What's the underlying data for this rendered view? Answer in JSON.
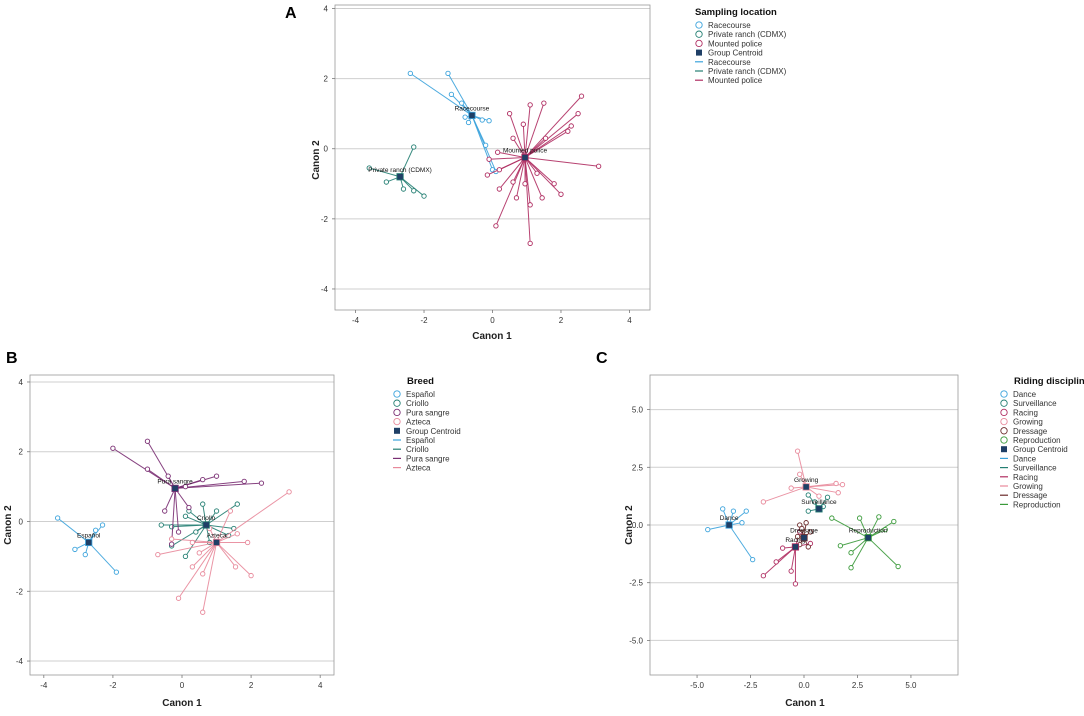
{
  "chart_data": [
    {
      "type": "scatter",
      "panel_label": "A",
      "title": "",
      "xlabel": "Canon 1",
      "ylabel": "Canon 2",
      "xlim": [
        -4.6,
        4.6
      ],
      "ylim": [
        -4.6,
        4.1
      ],
      "xticks": [
        -4,
        -2,
        0,
        2,
        4
      ],
      "yticks": [
        -4,
        -2,
        0,
        2,
        4
      ],
      "tick_labels_x": [
        "-4",
        "-2",
        "0",
        "2",
        "4"
      ],
      "tick_labels_y": [
        "-4",
        "-2",
        "0",
        "2",
        "4"
      ],
      "legend_title": "Sampling location",
      "legend_entries": [
        "Racecourse",
        "Private ranch (CDMX)",
        "Mounted police",
        "Group Centroid",
        "Racecourse",
        "Private ranch (CDMX)",
        "Mounted police"
      ],
      "groups": [
        {
          "name": "Racecourse",
          "color": "#3ba3dc",
          "centroid": [
            -0.6,
            0.95
          ],
          "points": [
            [
              -2.4,
              2.15
            ],
            [
              -1.3,
              2.15
            ],
            [
              -1.2,
              1.55
            ],
            [
              -0.9,
              1.3
            ],
            [
              -0.8,
              0.9
            ],
            [
              -0.7,
              0.75
            ],
            [
              -0.3,
              0.82
            ],
            [
              -0.1,
              0.8
            ],
            [
              -0.2,
              0.1
            ],
            [
              0,
              -0.6
            ],
            [
              0.1,
              -0.65
            ]
          ]
        },
        {
          "name": "Private ranch (CDMX)",
          "color": "#247f73",
          "centroid": [
            -2.7,
            -0.8
          ],
          "points": [
            [
              -3.6,
              -0.55
            ],
            [
              -2.3,
              0.05
            ],
            [
              -3.1,
              -0.95
            ],
            [
              -2.6,
              -1.15
            ],
            [
              -2.0,
              -1.35
            ],
            [
              -2.3,
              -1.2
            ]
          ]
        },
        {
          "name": "Mounted police",
          "color": "#b02e62",
          "centroid": [
            0.95,
            -0.25
          ],
          "points": [
            [
              0.15,
              -0.1
            ],
            [
              0.5,
              1.0
            ],
            [
              0.6,
              0.3
            ],
            [
              1.1,
              1.25
            ],
            [
              0.9,
              0.7
            ],
            [
              1.5,
              1.3
            ],
            [
              1.55,
              0.3
            ],
            [
              2.2,
              0.5
            ],
            [
              2.3,
              0.65
            ],
            [
              2.5,
              1.0
            ],
            [
              2.6,
              1.5
            ],
            [
              0.2,
              -0.6
            ],
            [
              -0.1,
              -0.3
            ],
            [
              -0.15,
              -0.75
            ],
            [
              0.2,
              -1.15
            ],
            [
              0.6,
              -0.95
            ],
            [
              0.95,
              -1.0
            ],
            [
              1.3,
              -0.7
            ],
            [
              1.1,
              -1.6
            ],
            [
              1.45,
              -1.4
            ],
            [
              1.8,
              -1.0
            ],
            [
              2.0,
              -1.3
            ],
            [
              0.1,
              -2.2
            ],
            [
              1.1,
              -2.7
            ],
            [
              3.1,
              -0.5
            ],
            [
              0.7,
              -1.4
            ]
          ]
        }
      ]
    },
    {
      "type": "scatter",
      "panel_label": "B",
      "title": "",
      "xlabel": "Canon 1",
      "ylabel": "Canon 2",
      "xlim": [
        -4.4,
        4.4
      ],
      "ylim": [
        -4.4,
        4.2
      ],
      "xticks": [
        -4,
        -2,
        0,
        2,
        4
      ],
      "yticks": [
        -4,
        -2,
        0,
        2,
        4
      ],
      "tick_labels_x": [
        "-4",
        "-2",
        "0",
        "2",
        "4"
      ],
      "tick_labels_y": [
        "-4",
        "-2",
        "0",
        "2",
        "4"
      ],
      "legend_title": "Breed",
      "legend_entries": [
        "Español",
        "Criollo",
        "Pura sangre",
        "Azteca",
        "Group Centroid",
        "Español",
        "Criollo",
        "Pura sangre",
        "Azteca"
      ],
      "groups": [
        {
          "name": "Español",
          "color": "#3ba3dc",
          "centroid": [
            -2.7,
            -0.6
          ],
          "points": [
            [
              -3.6,
              0.1
            ],
            [
              -3.1,
              -0.8
            ],
            [
              -2.3,
              -0.1
            ],
            [
              -2.5,
              -0.25
            ],
            [
              -2.8,
              -0.95
            ],
            [
              -1.9,
              -1.45
            ]
          ]
        },
        {
          "name": "Criollo",
          "color": "#247f73",
          "centroid": [
            0.7,
            -0.1
          ],
          "points": [
            [
              -0.6,
              -0.1
            ],
            [
              -0.3,
              -0.15
            ],
            [
              0.1,
              0.15
            ],
            [
              0.2,
              0.3
            ],
            [
              0.4,
              -0.3
            ],
            [
              0.6,
              0.5
            ],
            [
              0.8,
              -0.6
            ],
            [
              1.0,
              0.3
            ],
            [
              1.35,
              -0.4
            ],
            [
              1.5,
              -0.2
            ],
            [
              1.6,
              0.5
            ],
            [
              -0.3,
              -0.7
            ],
            [
              0.1,
              -1.0
            ]
          ]
        },
        {
          "name": "Pura sangre",
          "color": "#7a2e73",
          "centroid": [
            -0.2,
            0.95
          ],
          "points": [
            [
              -2.0,
              2.1
            ],
            [
              -1.0,
              2.3
            ],
            [
              -1.0,
              1.5
            ],
            [
              -0.4,
              1.3
            ],
            [
              0.1,
              1.0
            ],
            [
              0.6,
              1.2
            ],
            [
              1.0,
              1.3
            ],
            [
              1.8,
              1.15
            ],
            [
              2.3,
              1.1
            ],
            [
              -0.5,
              0.3
            ],
            [
              0.2,
              0.4
            ],
            [
              -0.1,
              -0.3
            ],
            [
              -0.3,
              -0.65
            ]
          ]
        },
        {
          "name": "Azteca",
          "color": "#e8899b",
          "centroid": [
            1.0,
            -0.6
          ],
          "points": [
            [
              -0.7,
              -0.95
            ],
            [
              -0.3,
              -0.5
            ],
            [
              0.3,
              -0.6
            ],
            [
              0.5,
              -0.9
            ],
            [
              0.3,
              -1.3
            ],
            [
              0.6,
              -1.5
            ],
            [
              0.8,
              -0.2
            ],
            [
              1.4,
              0.3
            ],
            [
              1.6,
              -0.35
            ],
            [
              1.9,
              -0.6
            ],
            [
              2.0,
              -1.55
            ],
            [
              1.55,
              -1.3
            ],
            [
              3.1,
              0.85
            ],
            [
              -0.1,
              -2.2
            ],
            [
              0.6,
              -2.6
            ]
          ]
        }
      ]
    },
    {
      "type": "scatter",
      "panel_label": "C",
      "title": "",
      "xlabel": "Canon 1",
      "ylabel": "Canon 2",
      "xlim": [
        -7.2,
        7.2
      ],
      "ylim": [
        -6.5,
        6.5
      ],
      "xticks": [
        -5,
        -2.5,
        0,
        2.5,
        5
      ],
      "yticks": [
        -5,
        -2.5,
        0,
        2.5,
        5
      ],
      "tick_labels_x": [
        "-5.0",
        "-2.5",
        "0.0",
        "2.5",
        "5.0"
      ],
      "tick_labels_y": [
        "-5.0",
        "-2.5",
        "0.0",
        "2.5",
        "5.0"
      ],
      "legend_title": "Riding discipline",
      "legend_entries": [
        "Dance",
        "Surveillance",
        "Racing",
        "Growing",
        "Dressage",
        "Reproduction",
        "Group Centroid",
        "Dance",
        "Surveillance",
        "Racing",
        "Growing",
        "Dressage",
        "Reproduction"
      ],
      "groups": [
        {
          "name": "Dance",
          "color": "#3ba3dc",
          "centroid": [
            -3.5,
            0.0
          ],
          "points": [
            [
              -4.5,
              -0.2
            ],
            [
              -3.8,
              0.7
            ],
            [
              -3.3,
              0.6
            ],
            [
              -2.7,
              0.6
            ],
            [
              -2.9,
              0.1
            ],
            [
              -2.4,
              -1.5
            ]
          ]
        },
        {
          "name": "Surveillance",
          "color": "#247f73",
          "centroid": [
            0.7,
            0.7
          ],
          "points": [
            [
              0.2,
              1.3
            ],
            [
              0.5,
              1.0
            ],
            [
              0.9,
              0.8
            ],
            [
              0.2,
              0.6
            ],
            [
              1.1,
              1.2
            ]
          ]
        },
        {
          "name": "Racing",
          "color": "#b02e62",
          "centroid": [
            -0.4,
            -0.95
          ],
          "points": [
            [
              -1.9,
              -2.2
            ],
            [
              -1.3,
              -1.6
            ],
            [
              -0.6,
              -2.0
            ],
            [
              -0.4,
              -2.55
            ],
            [
              -0.2,
              -0.3
            ],
            [
              0.3,
              -0.8
            ],
            [
              -1.0,
              -1.0
            ]
          ]
        },
        {
          "name": "Growing",
          "color": "#e8899b",
          "centroid": [
            0.1,
            1.65
          ],
          "points": [
            [
              -1.9,
              1.0
            ],
            [
              -0.6,
              1.6
            ],
            [
              -0.2,
              2.2
            ],
            [
              -0.3,
              3.2
            ],
            [
              1.6,
              1.4
            ],
            [
              1.8,
              1.75
            ],
            [
              1.5,
              1.8
            ],
            [
              0.7,
              1.25
            ]
          ]
        },
        {
          "name": "Dressage",
          "color": "#6b2a2a",
          "centroid": [
            0.0,
            -0.55
          ],
          "points": [
            [
              -0.2,
              0.0
            ],
            [
              -0.1,
              -0.2
            ],
            [
              0.1,
              0.1
            ],
            [
              0.3,
              -0.3
            ],
            [
              -0.3,
              -0.5
            ],
            [
              -0.2,
              -0.85
            ],
            [
              0.2,
              -0.95
            ],
            [
              -0.1,
              -0.15
            ]
          ]
        },
        {
          "name": "Reproduction",
          "color": "#3a9a3a",
          "centroid": [
            3.0,
            -0.55
          ],
          "points": [
            [
              1.3,
              0.3
            ],
            [
              2.2,
              -1.2
            ],
            [
              2.2,
              -1.85
            ],
            [
              2.6,
              0.3
            ],
            [
              3.5,
              0.35
            ],
            [
              3.8,
              -0.2
            ],
            [
              4.2,
              0.15
            ],
            [
              4.4,
              -1.8
            ],
            [
              1.7,
              -0.9
            ]
          ]
        }
      ]
    }
  ]
}
